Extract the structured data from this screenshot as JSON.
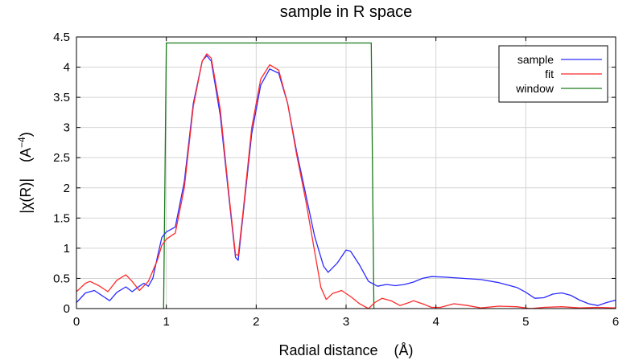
{
  "chart_data": {
    "type": "line",
    "title": "sample in R space",
    "xlabel": "Radial distance    (Å)",
    "ylabel": "|χ(R)|    (A",
    "ylabel_exponent": "−4",
    "ylabel_close": ")",
    "xlim": [
      0,
      6
    ],
    "ylim": [
      0,
      4.5
    ],
    "grid": true,
    "x_ticks": [
      0,
      1,
      2,
      3,
      4,
      5,
      6
    ],
    "x_tick_labels": [
      "0",
      "1",
      "2",
      "3",
      "4",
      "5",
      "6"
    ],
    "y_ticks": [
      0,
      0.5,
      1,
      1.5,
      2,
      2.5,
      3,
      3.5,
      4,
      4.5
    ],
    "y_tick_labels": [
      "0",
      "0.5",
      "1",
      "1.5",
      "2",
      "2.5",
      "3",
      "3.5",
      "4",
      "4.5"
    ],
    "legend_position": "top-right",
    "series": [
      {
        "name": "sample",
        "color": "#2b2bff",
        "points": [
          [
            0,
            0.1
          ],
          [
            0.1,
            0.26
          ],
          [
            0.2,
            0.3
          ],
          [
            0.3,
            0.2
          ],
          [
            0.37,
            0.13
          ],
          [
            0.45,
            0.27
          ],
          [
            0.55,
            0.36
          ],
          [
            0.62,
            0.28
          ],
          [
            0.7,
            0.37
          ],
          [
            0.75,
            0.42
          ],
          [
            0.8,
            0.37
          ],
          [
            0.85,
            0.5
          ],
          [
            0.9,
            0.85
          ],
          [
            0.95,
            1.18
          ],
          [
            1.0,
            1.27
          ],
          [
            1.1,
            1.35
          ],
          [
            1.2,
            2.1
          ],
          [
            1.3,
            3.4
          ],
          [
            1.4,
            4.1
          ],
          [
            1.45,
            4.19
          ],
          [
            1.5,
            4.1
          ],
          [
            1.6,
            3.2
          ],
          [
            1.7,
            1.8
          ],
          [
            1.77,
            0.85
          ],
          [
            1.8,
            0.8
          ],
          [
            1.85,
            1.5
          ],
          [
            1.95,
            2.9
          ],
          [
            2.05,
            3.7
          ],
          [
            2.15,
            3.97
          ],
          [
            2.25,
            3.9
          ],
          [
            2.35,
            3.4
          ],
          [
            2.45,
            2.6
          ],
          [
            2.55,
            1.9
          ],
          [
            2.65,
            1.2
          ],
          [
            2.75,
            0.7
          ],
          [
            2.8,
            0.6
          ],
          [
            2.9,
            0.75
          ],
          [
            3.0,
            0.97
          ],
          [
            3.05,
            0.95
          ],
          [
            3.15,
            0.72
          ],
          [
            3.25,
            0.45
          ],
          [
            3.35,
            0.37
          ],
          [
            3.45,
            0.4
          ],
          [
            3.55,
            0.38
          ],
          [
            3.65,
            0.4
          ],
          [
            3.75,
            0.44
          ],
          [
            3.85,
            0.5
          ],
          [
            3.95,
            0.53
          ],
          [
            4.1,
            0.52
          ],
          [
            4.3,
            0.5
          ],
          [
            4.5,
            0.48
          ],
          [
            4.7,
            0.43
          ],
          [
            4.9,
            0.35
          ],
          [
            5.0,
            0.27
          ],
          [
            5.1,
            0.17
          ],
          [
            5.2,
            0.18
          ],
          [
            5.3,
            0.24
          ],
          [
            5.4,
            0.26
          ],
          [
            5.5,
            0.22
          ],
          [
            5.6,
            0.14
          ],
          [
            5.7,
            0.08
          ],
          [
            5.8,
            0.05
          ],
          [
            5.9,
            0.1
          ],
          [
            6.0,
            0.14
          ]
        ]
      },
      {
        "name": "fit",
        "color": "#ff2b2b",
        "points": [
          [
            0,
            0.28
          ],
          [
            0.1,
            0.42
          ],
          [
            0.15,
            0.45
          ],
          [
            0.25,
            0.38
          ],
          [
            0.35,
            0.28
          ],
          [
            0.45,
            0.47
          ],
          [
            0.55,
            0.56
          ],
          [
            0.62,
            0.45
          ],
          [
            0.7,
            0.3
          ],
          [
            0.8,
            0.45
          ],
          [
            0.9,
            0.8
          ],
          [
            0.95,
            1.05
          ],
          [
            1.0,
            1.15
          ],
          [
            1.1,
            1.25
          ],
          [
            1.2,
            2.0
          ],
          [
            1.3,
            3.35
          ],
          [
            1.4,
            4.1
          ],
          [
            1.45,
            4.22
          ],
          [
            1.5,
            4.15
          ],
          [
            1.6,
            3.3
          ],
          [
            1.7,
            1.85
          ],
          [
            1.77,
            0.9
          ],
          [
            1.8,
            0.88
          ],
          [
            1.85,
            1.55
          ],
          [
            1.95,
            3.0
          ],
          [
            2.05,
            3.8
          ],
          [
            2.15,
            4.04
          ],
          [
            2.25,
            3.95
          ],
          [
            2.35,
            3.4
          ],
          [
            2.45,
            2.55
          ],
          [
            2.55,
            1.8
          ],
          [
            2.65,
            0.95
          ],
          [
            2.72,
            0.35
          ],
          [
            2.78,
            0.15
          ],
          [
            2.85,
            0.25
          ],
          [
            2.95,
            0.3
          ],
          [
            3.05,
            0.2
          ],
          [
            3.15,
            0.08
          ],
          [
            3.25,
            0.0
          ],
          [
            3.32,
            0.1
          ],
          [
            3.4,
            0.17
          ],
          [
            3.5,
            0.13
          ],
          [
            3.6,
            0.05
          ],
          [
            3.7,
            0.1
          ],
          [
            3.75,
            0.13
          ],
          [
            3.85,
            0.08
          ],
          [
            3.95,
            0.02
          ],
          [
            4.05,
            0.02
          ],
          [
            4.2,
            0.08
          ],
          [
            4.35,
            0.05
          ],
          [
            4.5,
            0.01
          ],
          [
            4.7,
            0.04
          ],
          [
            4.9,
            0.03
          ],
          [
            5.05,
            0.0
          ],
          [
            5.2,
            0.02
          ],
          [
            5.4,
            0.03
          ],
          [
            5.6,
            0.01
          ],
          [
            5.8,
            0.02
          ],
          [
            6.0,
            0.01
          ]
        ]
      },
      {
        "name": "window",
        "color": "#1a7a1a",
        "points": [
          [
            0.97,
            0
          ],
          [
            1.0,
            4.4
          ],
          [
            3.28,
            4.4
          ],
          [
            3.31,
            0
          ]
        ]
      }
    ]
  }
}
